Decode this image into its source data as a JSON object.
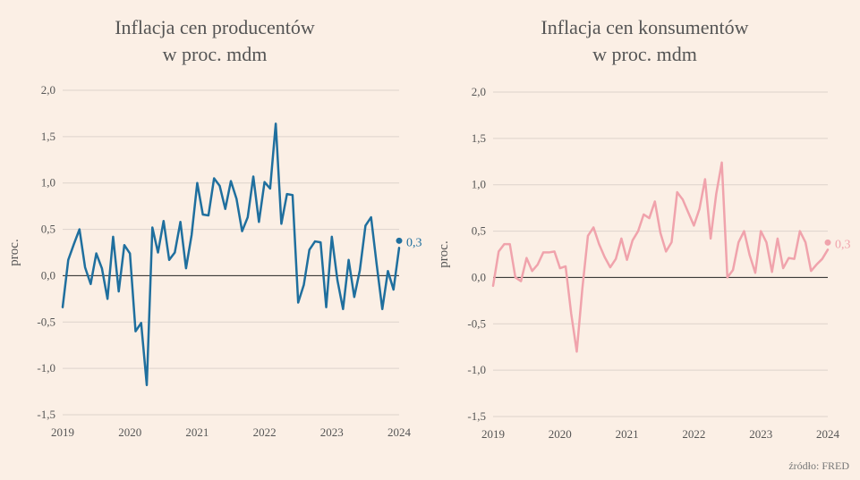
{
  "source": "źródło: FRED",
  "chart_data": [
    {
      "type": "line",
      "title": [
        "Inflacja cen producentów",
        "w proc. mdm"
      ],
      "ylabel": "proc.",
      "ylim": [
        -1.5,
        2.0
      ],
      "xlim": [
        2019,
        2024
      ],
      "yticks": [
        "2,0",
        "1,5",
        "1,0",
        "0,5",
        "0,0",
        "-0,5",
        "-1,0",
        "-1,5"
      ],
      "xticks": [
        "2019",
        "2020",
        "2021",
        "2022",
        "2023",
        "2024"
      ],
      "color": "#1f6f9e",
      "last_label": "0,3",
      "x": [
        "2019-01",
        "2019-02",
        "2019-03",
        "2019-04",
        "2019-05",
        "2019-06",
        "2019-07",
        "2019-08",
        "2019-09",
        "2019-10",
        "2019-11",
        "2019-12",
        "2020-01",
        "2020-02",
        "2020-03",
        "2020-04",
        "2020-05",
        "2020-06",
        "2020-07",
        "2020-08",
        "2020-09",
        "2020-10",
        "2020-11",
        "2020-12",
        "2021-01",
        "2021-02",
        "2021-03",
        "2021-04",
        "2021-05",
        "2021-06",
        "2021-07",
        "2021-08",
        "2021-09",
        "2021-10",
        "2021-11",
        "2021-12",
        "2022-01",
        "2022-02",
        "2022-03",
        "2022-04",
        "2022-05",
        "2022-06",
        "2022-07",
        "2022-08",
        "2022-09",
        "2022-10",
        "2022-11",
        "2022-12",
        "2023-01",
        "2023-02",
        "2023-03",
        "2023-04",
        "2023-05",
        "2023-06",
        "2023-07",
        "2023-08",
        "2023-09",
        "2023-10",
        "2023-11",
        "2023-12",
        "2024-01"
      ],
      "values": [
        -0.34,
        0.17,
        0.34,
        0.5,
        0.09,
        -0.09,
        0.24,
        0.08,
        -0.25,
        0.42,
        -0.17,
        0.33,
        0.24,
        -0.6,
        -0.51,
        -1.18,
        0.52,
        0.25,
        0.59,
        0.17,
        0.25,
        0.58,
        0.08,
        0.44,
        1.0,
        0.66,
        0.65,
        1.05,
        0.97,
        0.72,
        1.02,
        0.83,
        0.48,
        0.63,
        1.07,
        0.58,
        1.01,
        0.94,
        1.64,
        0.56,
        0.88,
        0.87,
        -0.29,
        -0.1,
        0.28,
        0.37,
        0.36,
        -0.34,
        0.42,
        -0.05,
        -0.36,
        0.17,
        -0.23,
        0.06,
        0.54,
        0.63,
        0.12,
        -0.36,
        0.05,
        -0.15,
        0.3
      ]
    },
    {
      "type": "line",
      "title": [
        "Inflacja cen konsumentów",
        "w proc. mdm"
      ],
      "ylabel": "proc.",
      "ylim": [
        -1.5,
        2.0
      ],
      "xlim": [
        2019,
        2024
      ],
      "yticks": [
        "2,0",
        "1,5",
        "1,0",
        "0,5",
        "0,0",
        "-0,5",
        "-1,0",
        "-1,5"
      ],
      "xticks": [
        "2019",
        "2020",
        "2021",
        "2022",
        "2023",
        "2024"
      ],
      "color": "#f0a3ac",
      "last_label": "0,3",
      "x": [
        "2019-01",
        "2019-02",
        "2019-03",
        "2019-04",
        "2019-05",
        "2019-06",
        "2019-07",
        "2019-08",
        "2019-09",
        "2019-10",
        "2019-11",
        "2019-12",
        "2020-01",
        "2020-02",
        "2020-03",
        "2020-04",
        "2020-05",
        "2020-06",
        "2020-07",
        "2020-08",
        "2020-09",
        "2020-10",
        "2020-11",
        "2020-12",
        "2021-01",
        "2021-02",
        "2021-03",
        "2021-04",
        "2021-05",
        "2021-06",
        "2021-07",
        "2021-08",
        "2021-09",
        "2021-10",
        "2021-11",
        "2021-12",
        "2022-01",
        "2022-02",
        "2022-03",
        "2022-04",
        "2022-05",
        "2022-06",
        "2022-07",
        "2022-08",
        "2022-09",
        "2022-10",
        "2022-11",
        "2022-12",
        "2023-01",
        "2023-02",
        "2023-03",
        "2023-04",
        "2023-05",
        "2023-06",
        "2023-07",
        "2023-08",
        "2023-09",
        "2023-10",
        "2023-11",
        "2023-12",
        "2024-01"
      ],
      "values": [
        -0.09,
        0.28,
        0.36,
        0.36,
        0.0,
        -0.04,
        0.21,
        0.07,
        0.14,
        0.27,
        0.27,
        0.28,
        0.1,
        0.12,
        -0.39,
        -0.8,
        -0.12,
        0.45,
        0.54,
        0.36,
        0.22,
        0.11,
        0.2,
        0.42,
        0.19,
        0.4,
        0.5,
        0.68,
        0.64,
        0.82,
        0.48,
        0.28,
        0.38,
        0.92,
        0.84,
        0.7,
        0.56,
        0.74,
        1.06,
        0.42,
        0.9,
        1.24,
        0.0,
        0.08,
        0.38,
        0.5,
        0.24,
        0.05,
        0.5,
        0.38,
        0.06,
        0.42,
        0.1,
        0.21,
        0.2,
        0.5,
        0.38,
        0.07,
        0.14,
        0.2,
        0.3
      ]
    }
  ]
}
